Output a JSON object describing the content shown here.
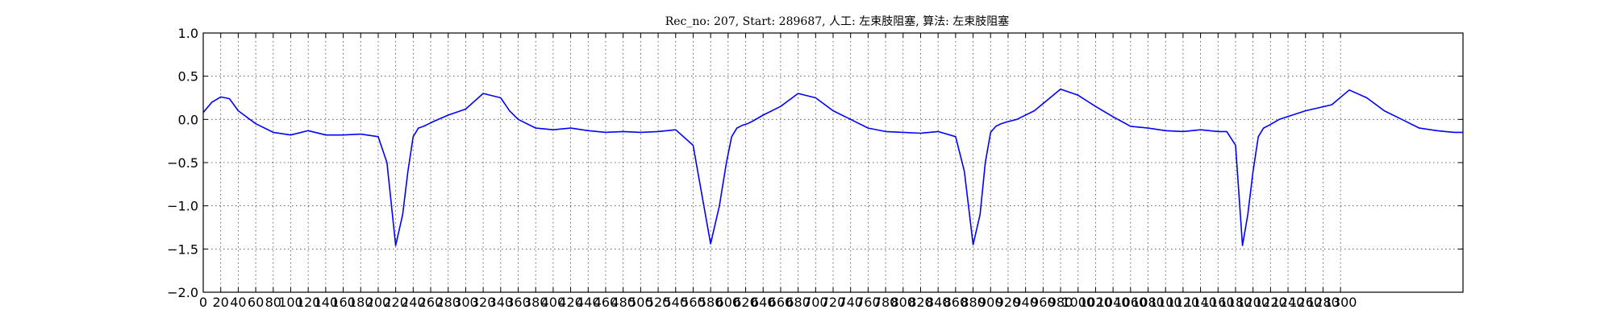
{
  "chart_data": {
    "type": "line",
    "title": "Rec_no: 207, Start: 289687, 人工: 左束肢阻塞, 算法: 左束肢阻塞",
    "xlabel": "",
    "ylabel": "",
    "xlim": [
      0,
      1440
    ],
    "ylim": [
      -2.0,
      1.0
    ],
    "grid": true,
    "yticks": [
      1.0,
      0.5,
      0.0,
      -0.5,
      -1.0,
      -1.5,
      -2.0
    ],
    "ytick_labels": [
      "1.0",
      "0.5",
      "0.0",
      "−0.5",
      "−1.0",
      "−1.5",
      "−2.0"
    ],
    "xticks": [
      0,
      20,
      40,
      60,
      80,
      100,
      120,
      140,
      160,
      180,
      200,
      220,
      240,
      260,
      280,
      300,
      320,
      340,
      360,
      380,
      400,
      420,
      440,
      460,
      480,
      500,
      520,
      540,
      560,
      580,
      600,
      620,
      640,
      660,
      680,
      700,
      720,
      740,
      760,
      780,
      800,
      820,
      840,
      860,
      880,
      900,
      920,
      940,
      960,
      980,
      1000,
      1020,
      1040,
      1060,
      1080,
      1100,
      1120,
      1140,
      1160,
      1180,
      1200,
      1220,
      1240,
      1260,
      1280,
      1300
    ],
    "colors": {
      "signal": "#0000ff",
      "highlight": "#ff0000"
    },
    "series": [
      {
        "color": "#0000ff",
        "x": [
          0,
          10,
          20,
          30,
          40,
          60,
          80,
          100,
          120,
          140,
          160,
          180,
          200,
          210,
          220,
          228,
          234,
          240,
          246,
          252,
          258,
          264,
          280,
          300,
          320,
          340,
          350,
          360,
          380,
          400,
          420,
          440,
          460,
          480,
          500,
          520,
          540,
          560,
          580,
          590,
          598,
          604,
          610,
          616,
          622,
          628,
          640,
          660,
          680,
          700,
          720,
          740,
          760,
          780,
          800,
          820,
          840,
          860,
          870,
          880,
          888,
          894,
          900,
          906,
          912,
          918,
          930,
          950,
          980,
          1000,
          1020,
          1040,
          1060,
          1080,
          1100,
          1120,
          1140,
          1160,
          1170,
          1180,
          1188,
          1194,
          1200,
          1206,
          1212,
          1218,
          1230,
          1260,
          1290,
          1310,
          1330,
          1350,
          1370,
          1390,
          1410,
          1420,
          1430,
          1440
        ],
        "y": [
          0.08,
          0.2,
          0.26,
          0.24,
          0.1,
          -0.05,
          -0.15,
          -0.18,
          -0.13,
          -0.18,
          -0.18,
          -0.17,
          -0.2,
          -0.5,
          -1.46,
          -1.1,
          -0.6,
          -0.2,
          -0.1,
          -0.08,
          -0.05,
          -0.02,
          0.05,
          0.12,
          0.3,
          0.25,
          0.1,
          0.0,
          -0.1,
          -0.12,
          -0.1,
          -0.13,
          -0.15,
          -0.14,
          -0.15,
          -0.14,
          -0.12,
          -0.3,
          -1.44,
          -1.0,
          -0.5,
          -0.2,
          -0.1,
          -0.07,
          -0.05,
          -0.02,
          0.05,
          0.15,
          0.3,
          0.25,
          0.1,
          0.0,
          -0.1,
          -0.14,
          -0.15,
          -0.16,
          -0.14,
          -0.2,
          -0.6,
          -1.45,
          -1.1,
          -0.5,
          -0.15,
          -0.08,
          -0.05,
          -0.03,
          0.0,
          0.1,
          0.35,
          0.28,
          0.15,
          0.03,
          -0.08,
          -0.1,
          -0.13,
          -0.14,
          -0.12,
          -0.14,
          -0.14,
          -0.3,
          -1.46,
          -1.1,
          -0.6,
          -0.2,
          -0.1,
          -0.07,
          0.0,
          0.1,
          0.17,
          0.34,
          0.25,
          0.1,
          0.0,
          -0.1,
          -0.13,
          -0.14,
          -0.15,
          -0.15
        ]
      }
    ]
  }
}
